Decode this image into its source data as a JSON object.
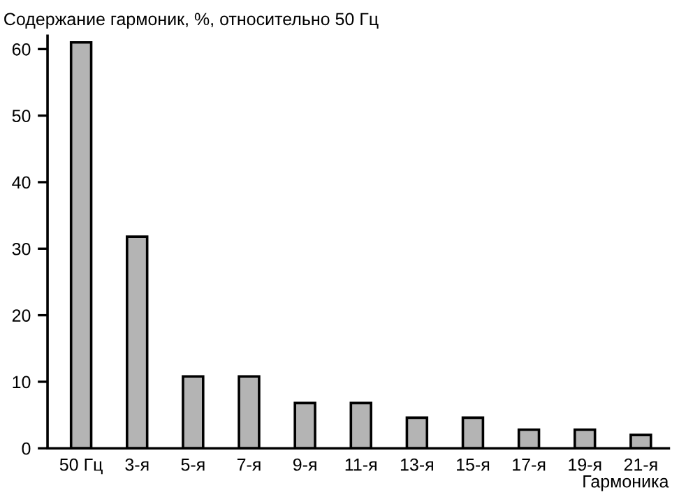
{
  "chart_data": {
    "type": "bar",
    "title": "Содержание гармоник, %, относительно 50 Гц",
    "xlabel": "Гармоника",
    "categories": [
      "50 Гц",
      "3-я",
      "5-я",
      "7-я",
      "9-я",
      "11-я",
      "13-я",
      "15-я",
      "17-я",
      "19-я",
      "21-я"
    ],
    "values": [
      61,
      31.8,
      10.8,
      10.8,
      6.8,
      6.8,
      4.6,
      4.6,
      2.8,
      2.8,
      2.0
    ],
    "color": "#b4b4b4",
    "ylim": [
      0,
      62
    ],
    "yticks": [
      0,
      10,
      20,
      30,
      40,
      50,
      60
    ],
    "grid": false
  }
}
